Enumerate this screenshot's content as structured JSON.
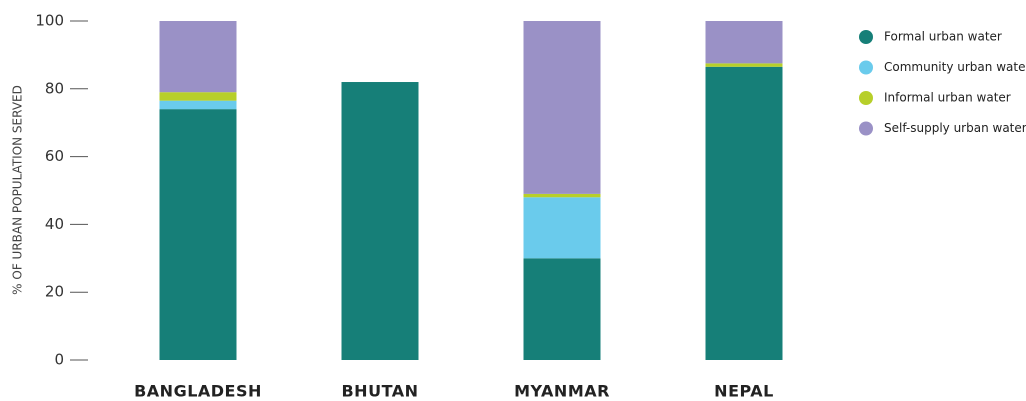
{
  "chart_data": {
    "type": "stacked_bar",
    "y_label": "% OF URBAN POPULATION SERVED",
    "categories": [
      "BANGLADESH",
      "BHUTAN",
      "MYANMAR",
      "NEPAL"
    ],
    "series": [
      {
        "name": "Formal urban water",
        "color": "#167f78",
        "values": [
          74,
          82,
          30,
          86.5
        ]
      },
      {
        "name": "Community urban water",
        "color": "#6acbec",
        "values": [
          2.5,
          0,
          18,
          0
        ]
      },
      {
        "name": "Informal urban water",
        "color": "#b7cf2a",
        "values": [
          2.5,
          0,
          1,
          1
        ]
      },
      {
        "name": "Self-supply urban water",
        "color": "#9a91c6",
        "values": [
          21,
          0,
          51,
          12.5
        ]
      }
    ],
    "ylim": [
      0,
      100
    ],
    "yticks": [
      0,
      20,
      40,
      60,
      80,
      100
    ],
    "legend": "right"
  }
}
